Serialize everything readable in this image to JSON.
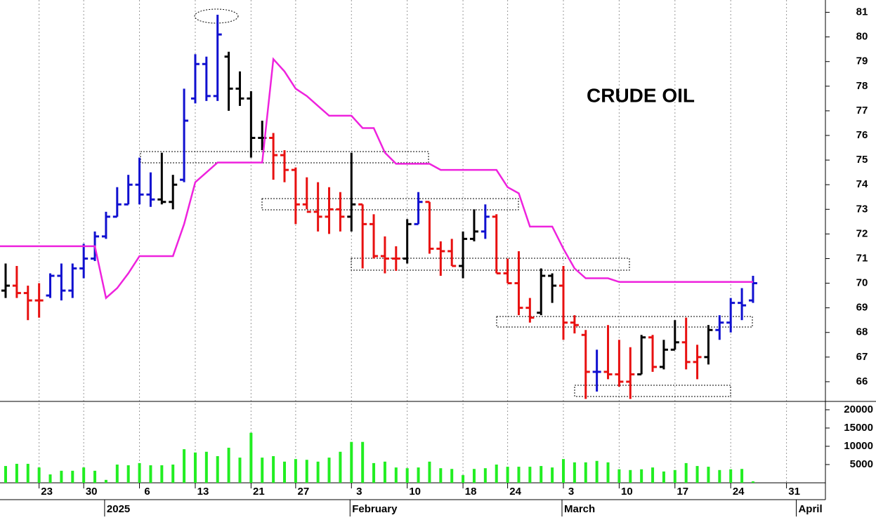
{
  "chart_data": [
    {
      "type": "ohlc",
      "title": "CRUDE OIL",
      "open": [
        69.7,
        69.9,
        69.6,
        69.3,
        69.5,
        70.3,
        69.7,
        70.6,
        71.0,
        71.9,
        72.7,
        73.2,
        74.0,
        73.6,
        73.4,
        73.3,
        74.2,
        77.5,
        78.9,
        77.6,
        79.2,
        77.9,
        77.5,
        75.9,
        75.9,
        75.2,
        74.6,
        73.2,
        72.9,
        72.7,
        73.0,
        72.7,
        73.2,
        72.4,
        71.1,
        71.0,
        71.0,
        72.4,
        73.3,
        71.4,
        71.3,
        70.7,
        71.8,
        72.1,
        72.7,
        70.4,
        70.0,
        69.0,
        68.8,
        70.3,
        69.9,
        68.4,
        67.9,
        66.4,
        66.4,
        66.3,
        66.0,
        66.3,
        67.8,
        66.6,
        67.3,
        67.6,
        66.8,
        67.0,
        68.1,
        68.4,
        69.2,
        69.3,
        null,
        null,
        null,
        null,
        null,
        null
      ],
      "high": [
        70.8,
        70.7,
        69.9,
        70.0,
        70.4,
        70.8,
        70.8,
        71.6,
        72.1,
        72.9,
        73.9,
        74.4,
        75.1,
        74.5,
        75.3,
        74.4,
        77.9,
        79.3,
        79.2,
        80.9,
        79.4,
        78.6,
        77.8,
        76.6,
        76.1,
        75.4,
        74.7,
        74.3,
        74.1,
        73.9,
        73.7,
        75.3,
        73.2,
        72.8,
        71.9,
        71.5,
        72.6,
        73.7,
        73.3,
        71.7,
        71.8,
        72.1,
        73.0,
        73.2,
        72.8,
        71.0,
        71.3,
        69.4,
        70.6,
        70.4,
        70.7,
        68.7,
        68.1,
        67.3,
        68.3,
        67.7,
        67.4,
        67.9,
        67.9,
        67.7,
        68.5,
        68.6,
        67.5,
        68.3,
        68.7,
        69.4,
        69.8,
        70.3,
        null,
        null,
        null,
        null,
        null,
        null
      ],
      "low": [
        69.4,
        69.4,
        68.5,
        68.6,
        69.4,
        69.3,
        69.4,
        70.2,
        70.9,
        71.8,
        72.7,
        73.2,
        73.2,
        73.1,
        73.2,
        73.0,
        74.1,
        77.3,
        77.4,
        77.4,
        77.0,
        77.2,
        75.1,
        75.4,
        74.2,
        74.1,
        72.4,
        73.0,
        72.1,
        72.0,
        72.1,
        72.1,
        70.6,
        71.0,
        70.4,
        70.5,
        70.8,
        72.4,
        71.2,
        70.3,
        70.7,
        70.2,
        71.7,
        71.8,
        70.4,
        70.0,
        68.7,
        68.4,
        68.7,
        69.2,
        67.7,
        67.96,
        65.3,
        65.6,
        66.1,
        65.8,
        65.3,
        66.3,
        66.4,
        66.5,
        67.3,
        66.5,
        66.1,
        66.7,
        67.7,
        68.0,
        68.5,
        69.2,
        null,
        null,
        null,
        null,
        null,
        null
      ],
      "close": [
        69.9,
        69.6,
        69.3,
        69.3,
        70.3,
        69.7,
        70.6,
        71.0,
        71.9,
        72.7,
        73.2,
        74.0,
        73.6,
        73.4,
        73.3,
        74.0,
        76.6,
        78.9,
        77.6,
        80.1,
        77.9,
        77.5,
        75.9,
        75.9,
        75.2,
        74.6,
        73.2,
        72.9,
        72.7,
        73.0,
        72.7,
        73.2,
        72.4,
        71.1,
        71.0,
        71.0,
        72.4,
        73.3,
        71.4,
        71.3,
        70.7,
        71.8,
        72.1,
        72.7,
        70.4,
        70.0,
        69.0,
        68.6,
        70.3,
        69.9,
        68.4,
        68.3,
        66.4,
        66.4,
        66.3,
        66.0,
        66.3,
        67.8,
        66.6,
        67.3,
        67.6,
        66.8,
        67.0,
        68.1,
        68.4,
        69.2,
        69.1,
        70.0,
        null,
        null,
        null,
        null,
        null,
        null
      ],
      "bar_colors": [
        "#000000",
        "#e81010",
        "#e81010",
        "#e81010",
        "#1010d0",
        "#1010d0",
        "#1010d0",
        "#1010d0",
        "#1010d0",
        "#1010d0",
        "#1010d0",
        "#1010d0",
        "#1010d0",
        "#1010d0",
        "#000000",
        "#000000",
        "#1010d0",
        "#1010d0",
        "#1010d0",
        "#1010d0",
        "#000000",
        "#000000",
        "#000000",
        "#000000",
        "#e81010",
        "#e81010",
        "#e81010",
        "#e81010",
        "#e81010",
        "#e81010",
        "#e81010",
        "#000000",
        "#e81010",
        "#e81010",
        "#e81010",
        "#e81010",
        "#000000",
        "#1010d0",
        "#e81010",
        "#e81010",
        "#e81010",
        "#000000",
        "#000000",
        "#1010d0",
        "#e81010",
        "#e81010",
        "#e81010",
        "#e81010",
        "#000000",
        "#000000",
        "#e81010",
        "#e81010",
        "#e81010",
        "#1010d0",
        "#e81010",
        "#e81010",
        "#e81010",
        "#000000",
        "#e81010",
        "#000000",
        "#000000",
        "#e81010",
        "#e81010",
        "#000000",
        "#1010d0",
        "#1010d0",
        "#1010d0",
        "#1010d0",
        null,
        null,
        null,
        null,
        null,
        null
      ],
      "overlay": {
        "color": "#ee22dd",
        "values": [
          71.5,
          71.5,
          71.5,
          71.5,
          71.5,
          71.5,
          71.5,
          71.5,
          71.5,
          69.4,
          69.8,
          70.4,
          71.1,
          71.1,
          71.1,
          71.1,
          72.4,
          74.1,
          74.5,
          74.9,
          74.9,
          74.9,
          74.9,
          74.9,
          79.1,
          78.6,
          77.9,
          77.6,
          77.2,
          76.8,
          76.8,
          76.8,
          76.3,
          76.3,
          75.3,
          74.85,
          74.85,
          74.85,
          74.85,
          74.6,
          74.6,
          74.6,
          74.6,
          74.6,
          74.6,
          73.9,
          73.65,
          72.3,
          72.3,
          72.3,
          71.4,
          70.6,
          70.2,
          70.2,
          70.2,
          70.05,
          70.05,
          70.05,
          70.05,
          70.05,
          70.05,
          70.05,
          70.05,
          70.05,
          70.05,
          70.05,
          70.05,
          70.05,
          null,
          null,
          null,
          null,
          null,
          null
        ]
      },
      "ylim": [
        65.2,
        81.5
      ],
      "yticks": [
        66,
        67,
        68,
        69,
        70,
        71,
        72,
        73,
        74,
        75,
        76,
        77,
        78,
        79,
        80,
        81
      ]
    },
    {
      "type": "bar",
      "color": "#22ee22",
      "categories": [
        null,
        null,
        null,
        "23",
        null,
        null,
        null,
        "30",
        null,
        null,
        null,
        null,
        "6",
        null,
        null,
        null,
        null,
        "13",
        null,
        null,
        null,
        null,
        "21",
        null,
        null,
        null,
        "27",
        null,
        null,
        null,
        null,
        "3",
        null,
        null,
        null,
        null,
        "10",
        null,
        null,
        null,
        null,
        "18",
        null,
        null,
        null,
        "24",
        null,
        null,
        null,
        null,
        "3",
        null,
        null,
        null,
        null,
        "10",
        null,
        null,
        null,
        null,
        "17",
        null,
        null,
        null,
        null,
        "24",
        null,
        null,
        null,
        null,
        "31",
        null,
        null,
        null
      ],
      "month_labels": [
        null,
        null,
        null,
        null,
        null,
        null,
        null,
        null,
        null,
        "2025",
        null,
        null,
        null,
        null,
        null,
        null,
        null,
        null,
        null,
        null,
        null,
        null,
        null,
        null,
        null,
        null,
        null,
        null,
        null,
        null,
        null,
        "February",
        null,
        null,
        null,
        null,
        null,
        null,
        null,
        null,
        null,
        null,
        null,
        null,
        null,
        null,
        null,
        null,
        null,
        null,
        "March",
        null,
        null,
        null,
        null,
        null,
        null,
        null,
        null,
        null,
        null,
        null,
        null,
        null,
        null,
        null,
        null,
        null,
        null,
        null,
        null,
        "April",
        null,
        null
      ],
      "values": [
        4600,
        5200,
        5200,
        4200,
        2300,
        3300,
        3300,
        4200,
        3300,
        800,
        5000,
        4800,
        5400,
        4800,
        4800,
        5000,
        9200,
        8300,
        8500,
        7300,
        9600,
        6900,
        13700,
        6900,
        7300,
        5800,
        6500,
        6300,
        5800,
        6900,
        8500,
        11200,
        11200,
        5400,
        5800,
        4200,
        4000,
        4200,
        5800,
        4000,
        3800,
        2100,
        3800,
        4000,
        5000,
        4400,
        4400,
        4400,
        4600,
        4200,
        6500,
        5600,
        5600,
        6000,
        5600,
        3700,
        3500,
        3700,
        4200,
        3100,
        3500,
        5400,
        4600,
        4400,
        3500,
        3700,
        3800,
        400,
        null,
        null,
        null,
        null,
        null,
        null
      ],
      "ylim": [
        0,
        22100
      ],
      "yticks": [
        5000,
        10000,
        15000,
        20000
      ]
    }
  ]
}
